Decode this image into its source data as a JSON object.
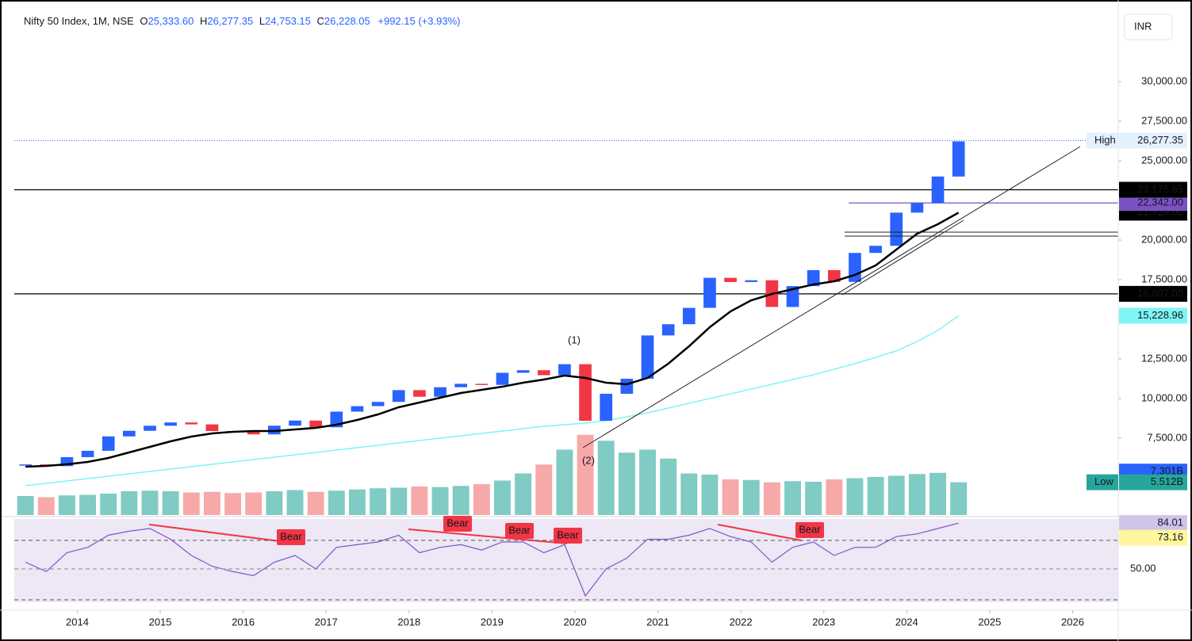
{
  "header": {
    "title": "Nifty 50 Index, 1M, NSE",
    "ohlc": [
      {
        "key": "O",
        "value": "25,333.60"
      },
      {
        "key": "H",
        "value": "26,277.35"
      },
      {
        "key": "L",
        "value": "24,753.15"
      },
      {
        "key": "C",
        "value": "26,228.05"
      }
    ],
    "change": "+992.15 (+3.93%)",
    "currency": "INR"
  },
  "chart_data": {
    "type": "candlestick",
    "x": [
      2013.375,
      2013.625,
      2013.875,
      2014.125,
      2014.375,
      2014.625,
      2014.875,
      2015.125,
      2015.375,
      2015.625,
      2015.875,
      2016.125,
      2016.375,
      2016.625,
      2016.875,
      2017.125,
      2017.375,
      2017.625,
      2017.875,
      2018.125,
      2018.375,
      2018.625,
      2018.875,
      2019.125,
      2019.375,
      2019.625,
      2019.875,
      2020.125,
      2020.375,
      2020.625,
      2020.875,
      2021.125,
      2021.375,
      2021.625,
      2021.875,
      2022.125,
      2022.375,
      2022.625,
      2022.875,
      2023.125,
      2023.375,
      2023.625,
      2023.875,
      2024.125,
      2024.375,
      2024.625
    ],
    "close": [
      5842,
      5735,
      6304,
      6704,
      7611,
      7965,
      8283,
      8491,
      8369,
      7949,
      7946,
      7738,
      8288,
      8611,
      8186,
      9174,
      9521,
      9789,
      10531,
      10114,
      10714,
      10930,
      10863,
      11624,
      11789,
      11474,
      12168,
      8598,
      10302,
      11248,
      13982,
      14691,
      15722,
      17618,
      17354,
      17465,
      15780,
      17094,
      18105,
      17360,
      19189,
      19638,
      21731,
      22327,
      24011,
      26228.05
    ],
    "ma": [
      5700,
      5750,
      5850,
      6000,
      6250,
      6600,
      6950,
      7300,
      7600,
      7800,
      7900,
      7950,
      7950,
      8050,
      8150,
      8350,
      8650,
      9000,
      9450,
      9750,
      10050,
      10350,
      10550,
      10750,
      11000,
      11200,
      11450,
      11300,
      11000,
      10900,
      11300,
      12200,
      13300,
      14500,
      15500,
      16200,
      16600,
      16900,
      17200,
      17400,
      17800,
      18400,
      19400,
      20400,
      21000,
      21729
    ],
    "ma_long": [
      4500,
      4650,
      4800,
      4950,
      5100,
      5250,
      5400,
      5550,
      5700,
      5850,
      6000,
      6150,
      6300,
      6450,
      6600,
      6750,
      6900,
      7050,
      7200,
      7350,
      7500,
      7650,
      7800,
      7950,
      8100,
      8250,
      8350,
      8450,
      8600,
      8850,
      9100,
      9400,
      9700,
      10000,
      10300,
      10600,
      10900,
      11200,
      11500,
      11850,
      12200,
      12600,
      13000,
      13600,
      14300,
      15228.96
    ],
    "volume": [
      3.2,
      3.0,
      3.3,
      3.4,
      3.6,
      4.0,
      4.1,
      4.0,
      3.8,
      3.9,
      3.7,
      3.8,
      4.0,
      4.2,
      3.9,
      4.1,
      4.3,
      4.5,
      4.6,
      4.8,
      4.7,
      4.9,
      5.2,
      5.8,
      7.0,
      8.5,
      11.0,
      13.5,
      12.5,
      10.5,
      11.0,
      9.5,
      7.0,
      6.8,
      6.0,
      5.9,
      5.5,
      5.7,
      5.6,
      6.0,
      6.2,
      6.4,
      6.6,
      6.9,
      7.1,
      5.512
    ],
    "rsi": [
      55,
      48,
      62,
      66,
      75,
      78,
      80,
      72,
      60,
      52,
      48,
      45,
      55,
      60,
      50,
      66,
      68,
      70,
      75,
      62,
      66,
      68,
      64,
      70,
      70,
      62,
      68,
      30,
      50,
      58,
      72,
      72,
      75,
      80,
      74,
      70,
      55,
      66,
      70,
      60,
      66,
      66,
      74,
      76,
      80,
      84.01
    ],
    "xlim": [
      2013.24,
      2026.55
    ],
    "xticks": [
      2014,
      2015,
      2016,
      2017,
      2018,
      2019,
      2020,
      2021,
      2022,
      2023,
      2024,
      2025,
      2026
    ],
    "ylim": [
      5000,
      32000
    ],
    "yticks": [
      {
        "value": 7500,
        "label": "7,500.00"
      },
      {
        "value": 10000,
        "label": "10,000.00"
      },
      {
        "value": 12500,
        "label": "12,500.00"
      },
      {
        "value": 17500,
        "label": "17,500.00"
      },
      {
        "value": 20000,
        "label": "20,000.00"
      },
      {
        "value": 25000,
        "label": "25,000.00"
      },
      {
        "value": 27500,
        "label": "27,500.00"
      },
      {
        "value": 30000,
        "label": "30,000.00"
      }
    ],
    "up_color": "#2962ff",
    "down_color": "#f23645",
    "vol_up_color": "#80cbc4",
    "vol_down_color": "#f7a9a9",
    "ma_color": "#000000",
    "ma_long_color": "#7ff5f5",
    "levels": [
      {
        "value": 23175.65,
        "color": "#000000",
        "from": 2013.24
      },
      {
        "value": 16607,
        "color": "#000000",
        "from": 2013.24
      },
      {
        "value": 22342,
        "color": "#7b52c4",
        "from": 2023.3
      }
    ],
    "tags": [
      {
        "name": "High",
        "value": 26277.35,
        "label": "26,277.35",
        "bg": "#e3f0fd",
        "fg": "#131722"
      },
      {
        "value": 21729,
        "label": "21,729.00",
        "bg": "#000000",
        "fg": "#ffffff"
      },
      {
        "value": 22342,
        "label": "22,342.00",
        "bg": "#7b52c4",
        "fg": "#ffffff"
      },
      {
        "value": 23175.65,
        "label": "23,175.65",
        "bg": "#000000",
        "fg": "#ffffff"
      },
      {
        "value": 16607,
        "label": "16,607.00",
        "bg": "#000000",
        "fg": "#ffffff"
      },
      {
        "value": 15228.96,
        "label": "15,228.96",
        "bg": "#7ff5f5",
        "fg": "#131722"
      }
    ],
    "volume_tags": [
      {
        "value": 7.301,
        "label": "7.301B",
        "bg": "#2962ff",
        "fg": "#ffffff"
      },
      {
        "name": "Low",
        "value": 5.512,
        "label": "5.512B",
        "bg": "#26a69a",
        "fg": "#ffffff"
      }
    ],
    "rsi_tags": [
      {
        "value": 84.01,
        "label": "84.01",
        "bg": "#d1c4e9",
        "fg": "#131722"
      },
      {
        "value": 73.16,
        "label": "73.16",
        "bg": "#fff59d",
        "fg": "#131722"
      }
    ],
    "rsi_ticks": [
      {
        "value": 50,
        "label": "50.00"
      }
    ],
    "annotations": [
      "(1)",
      "(2)",
      "Bear",
      "Bear",
      "Bear",
      "Bear",
      "Bear"
    ]
  }
}
